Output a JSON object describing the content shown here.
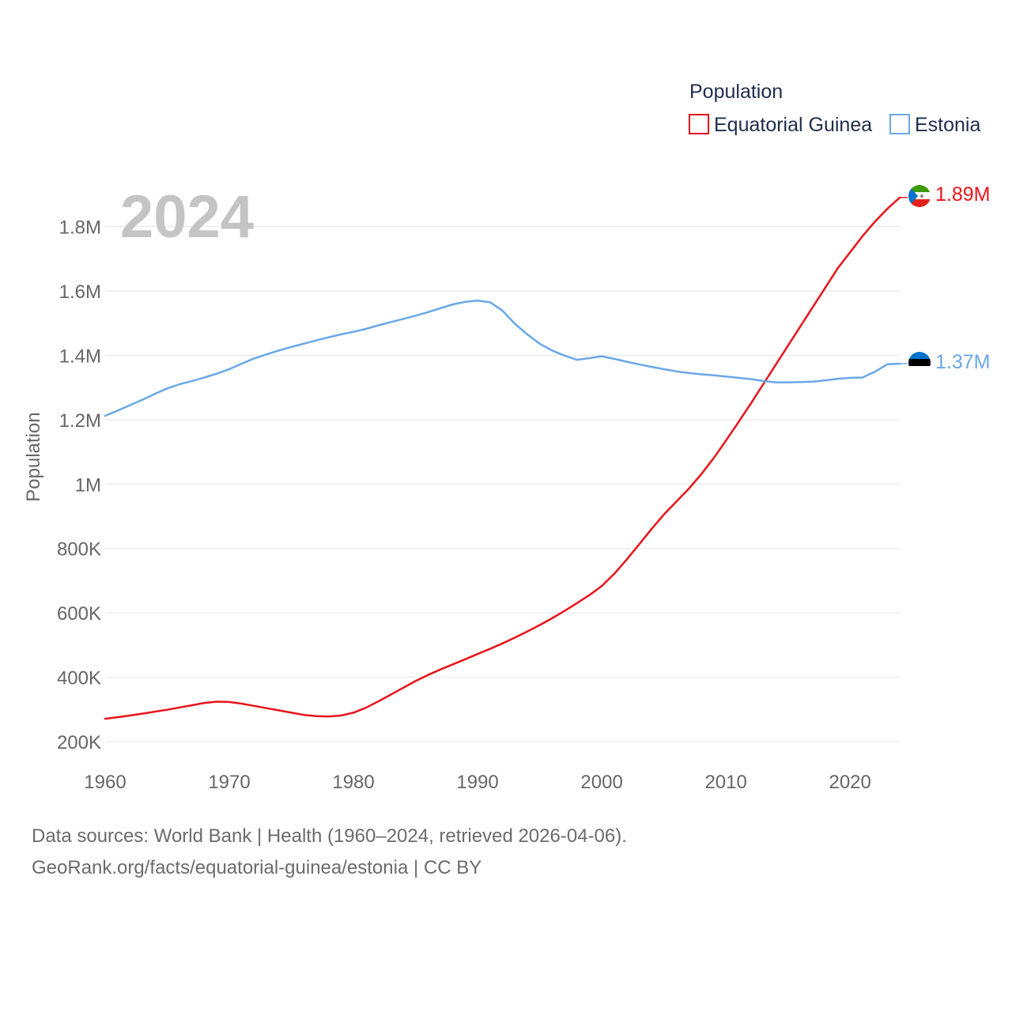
{
  "chart_data": {
    "type": "line",
    "year_label": "2024",
    "legend_title": "Population",
    "ylabel": "Population",
    "xlabel": "",
    "xlim": [
      1960,
      2024
    ],
    "ylim": [
      200000,
      1900000
    ],
    "x_ticks": [
      {
        "value": 1960,
        "label": "1960"
      },
      {
        "value": 1970,
        "label": "1970"
      },
      {
        "value": 1980,
        "label": "1980"
      },
      {
        "value": 1990,
        "label": "1990"
      },
      {
        "value": 2000,
        "label": "2000"
      },
      {
        "value": 2010,
        "label": "2010"
      },
      {
        "value": 2020,
        "label": "2020"
      }
    ],
    "y_ticks": [
      {
        "value": 200000,
        "label": "200K"
      },
      {
        "value": 400000,
        "label": "400K"
      },
      {
        "value": 600000,
        "label": "600K"
      },
      {
        "value": 800000,
        "label": "800K"
      },
      {
        "value": 1000000,
        "label": "1M"
      },
      {
        "value": 1200000,
        "label": "1.2M"
      },
      {
        "value": 1400000,
        "label": "1.4M"
      },
      {
        "value": 1600000,
        "label": "1.6M"
      },
      {
        "value": 1800000,
        "label": "1.8M"
      }
    ],
    "series": [
      {
        "name": "Equatorial Guinea",
        "color": "#e8141b",
        "end_label": "1.89M",
        "flag_icon": "equatorial-guinea-flag-icon",
        "x": [
          1960,
          1961,
          1962,
          1963,
          1964,
          1965,
          1966,
          1967,
          1968,
          1969,
          1970,
          1971,
          1972,
          1973,
          1974,
          1975,
          1976,
          1977,
          1978,
          1979,
          1980,
          1981,
          1982,
          1983,
          1984,
          1985,
          1986,
          1987,
          1988,
          1989,
          1990,
          1991,
          1992,
          1993,
          1994,
          1995,
          1996,
          1997,
          1998,
          1999,
          2000,
          2001,
          2002,
          2003,
          2004,
          2005,
          2006,
          2007,
          2008,
          2009,
          2010,
          2011,
          2012,
          2013,
          2014,
          2015,
          2016,
          2017,
          2018,
          2019,
          2020,
          2021,
          2022,
          2023,
          2024
        ],
        "values": [
          271000,
          276000,
          281000,
          287000,
          293000,
          299000,
          306000,
          313000,
          320000,
          324000,
          323000,
          318000,
          311000,
          304000,
          297000,
          290000,
          283000,
          279000,
          278000,
          281000,
          290000,
          305000,
          325000,
          346000,
          367000,
          388000,
          407000,
          424000,
          440000,
          456000,
          472000,
          488000,
          505000,
          523000,
          542000,
          562000,
          583000,
          606000,
          630000,
          655000,
          683000,
          721000,
          765000,
          812000,
          860000,
          905000,
          945000,
          985000,
          1030000,
          1080000,
          1135000,
          1192000,
          1250000,
          1310000,
          1370000,
          1430000,
          1490000,
          1550000,
          1610000,
          1670000,
          1720000,
          1770000,
          1815000,
          1855000,
          1890000
        ]
      },
      {
        "name": "Estonia",
        "color": "#6aa8e6",
        "end_label": "1.37M",
        "flag_icon": "estonia-flag-icon",
        "x": [
          1960,
          1961,
          1962,
          1963,
          1964,
          1965,
          1966,
          1967,
          1968,
          1969,
          1970,
          1971,
          1972,
          1973,
          1974,
          1975,
          1976,
          1977,
          1978,
          1979,
          1980,
          1981,
          1982,
          1983,
          1984,
          1985,
          1986,
          1987,
          1988,
          1989,
          1990,
          1991,
          1992,
          1993,
          1994,
          1995,
          1996,
          1997,
          1998,
          1999,
          2000,
          2001,
          2002,
          2003,
          2004,
          2005,
          2006,
          2007,
          2008,
          2009,
          2010,
          2011,
          2012,
          2013,
          2014,
          2015,
          2016,
          2017,
          2018,
          2019,
          2020,
          2021,
          2022,
          2023,
          2024
        ],
        "values": [
          1212000,
          1228000,
          1245000,
          1262000,
          1280000,
          1297000,
          1310000,
          1320000,
          1331000,
          1343000,
          1357000,
          1374000,
          1390000,
          1403000,
          1415000,
          1426000,
          1436000,
          1446000,
          1456000,
          1465000,
          1473000,
          1482000,
          1493000,
          1503000,
          1513000,
          1523000,
          1534000,
          1546000,
          1558000,
          1566000,
          1570000,
          1565000,
          1539000,
          1498000,
          1465000,
          1436000,
          1415000,
          1399000,
          1386000,
          1391000,
          1397000,
          1389000,
          1380000,
          1372000,
          1364000,
          1357000,
          1350000,
          1345000,
          1341000,
          1338000,
          1334000,
          1330000,
          1326000,
          1320000,
          1316000,
          1316000,
          1317000,
          1318000,
          1322000,
          1327000,
          1330000,
          1331000,
          1349000,
          1372000,
          1374000
        ]
      }
    ]
  },
  "footer": {
    "sources": "Data sources: World Bank | Health (1960–2024, retrieved 2026-04-06).",
    "attribution": "GeoRank.org/facts/equatorial-guinea/estonia | CC BY"
  }
}
